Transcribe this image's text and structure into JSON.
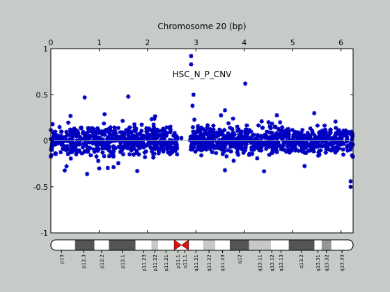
{
  "chart_data": {
    "type": "scatter",
    "title": "Chromosome 20 (bp)",
    "annotation": "HSC_N_P_CNV",
    "x_axis": {
      "position": "top",
      "range": [
        0,
        6.25
      ],
      "ticks": [
        0,
        1,
        2,
        3,
        4,
        5,
        6
      ],
      "tick_labels": [
        "0",
        "1",
        "2",
        "3",
        "4",
        "5",
        "6"
      ]
    },
    "y_axis": {
      "range": [
        -1,
        1
      ],
      "ticks": [
        -1,
        -0.5,
        0,
        0.5,
        1
      ],
      "tick_labels": [
        "-1",
        "-0.5",
        "0",
        "0.5",
        "1"
      ]
    },
    "reference_line_y": 0,
    "grid": false,
    "marker_color": "#0000c0",
    "line_color": "#a0a4b8",
    "gap_range": [
      2.62,
      2.88
    ],
    "points": {
      "description_free": true,
      "dense_segments": [
        {
          "x_start": 0.0,
          "x_end": 2.62,
          "spread": 0.13
        },
        {
          "x_start": 2.88,
          "x_end": 6.25,
          "spread": 0.13
        }
      ],
      "notable": [
        {
          "x": 2.9,
          "y": 0.92
        },
        {
          "x": 2.9,
          "y": 0.83
        },
        {
          "x": 4.02,
          "y": 0.62
        },
        {
          "x": 2.95,
          "y": 0.5
        },
        {
          "x": 0.7,
          "y": 0.47
        },
        {
          "x": 1.6,
          "y": 0.48
        },
        {
          "x": 2.7,
          "y": 0.03
        },
        {
          "x": 6.2,
          "y": -0.44
        },
        {
          "x": 6.2,
          "y": -0.5
        },
        {
          "x": 1.0,
          "y": -0.3
        },
        {
          "x": 0.75,
          "y": -0.36
        },
        {
          "x": 3.6,
          "y": -0.32
        }
      ]
    },
    "ideogram": {
      "bands": [
        {
          "label": "p13",
          "start": 0.0,
          "end": 0.5,
          "stain": "gneg"
        },
        {
          "label": "p12.3",
          "start": 0.5,
          "end": 0.9,
          "stain": "gpos75"
        },
        {
          "label": "p12.2",
          "start": 0.9,
          "end": 1.2,
          "stain": "gneg"
        },
        {
          "label": "p12.1",
          "start": 1.2,
          "end": 1.75,
          "stain": "gpos75"
        },
        {
          "label": "p11.23",
          "start": 1.75,
          "end": 2.08,
          "stain": "gneg"
        },
        {
          "label": "p11.22",
          "start": 2.08,
          "end": 2.22,
          "stain": "gpos25"
        },
        {
          "label": "p11.21",
          "start": 2.22,
          "end": 2.55,
          "stain": "gneg"
        },
        {
          "label": "p11.1",
          "start": 2.55,
          "end": 2.7,
          "stain": "acen"
        },
        {
          "label": "q11.1",
          "start": 2.7,
          "end": 2.85,
          "stain": "acen"
        },
        {
          "label": "q11.21",
          "start": 2.85,
          "end": 3.15,
          "stain": "gneg"
        },
        {
          "label": "q11.22",
          "start": 3.15,
          "end": 3.4,
          "stain": "gpos25"
        },
        {
          "label": "q11.23",
          "start": 3.4,
          "end": 3.7,
          "stain": "gneg"
        },
        {
          "label": "q12",
          "start": 3.7,
          "end": 4.1,
          "stain": "gpos75"
        },
        {
          "label": "q13.11",
          "start": 4.1,
          "end": 4.55,
          "stain": "gpos25"
        },
        {
          "label": "q13.12",
          "start": 4.55,
          "end": 4.6,
          "stain": "gneg"
        },
        {
          "label": "q13.13",
          "start": 4.6,
          "end": 4.92,
          "stain": "gneg"
        },
        {
          "label": "q13.2",
          "start": 4.92,
          "end": 5.45,
          "stain": "gpos75"
        },
        {
          "label": "q13.31",
          "start": 5.45,
          "end": 5.6,
          "stain": "gneg"
        },
        {
          "label": "q13.32",
          "start": 5.6,
          "end": 5.8,
          "stain": "gpos50"
        },
        {
          "label": "q13.33",
          "start": 5.8,
          "end": 6.25,
          "stain": "gneg"
        }
      ],
      "stain_colors": {
        "gneg": "#ffffff",
        "gpos25": "#c8c8c8",
        "gpos50": "#969696",
        "gpos75": "#555555",
        "acen": "#e01010"
      },
      "label_ticks": [
        {
          "label": "p13",
          "x": 0.22
        },
        {
          "label": "p12.3",
          "x": 0.68
        },
        {
          "label": "p12.2",
          "x": 1.05
        },
        {
          "label": "p12.1",
          "x": 1.48
        },
        {
          "label": "p11.23",
          "x": 1.92
        },
        {
          "label": "p11.22",
          "x": 2.15
        },
        {
          "label": "p11.21",
          "x": 2.38
        },
        {
          "label": "p11.1",
          "x": 2.63
        },
        {
          "label": "q11.1",
          "x": 2.77
        },
        {
          "label": "q11.21",
          "x": 3.0
        },
        {
          "label": "q11.22",
          "x": 3.27
        },
        {
          "label": "q11.23",
          "x": 3.55
        },
        {
          "label": "q12",
          "x": 3.9
        },
        {
          "label": "q13.11",
          "x": 4.32
        },
        {
          "label": "q13.12",
          "x": 4.57
        },
        {
          "label": "q13.13",
          "x": 4.76
        },
        {
          "label": "q13.2",
          "x": 5.18
        },
        {
          "label": "q13.31",
          "x": 5.52
        },
        {
          "label": "q13.32",
          "x": 5.7
        },
        {
          "label": "q13.33",
          "x": 6.02
        }
      ]
    }
  }
}
